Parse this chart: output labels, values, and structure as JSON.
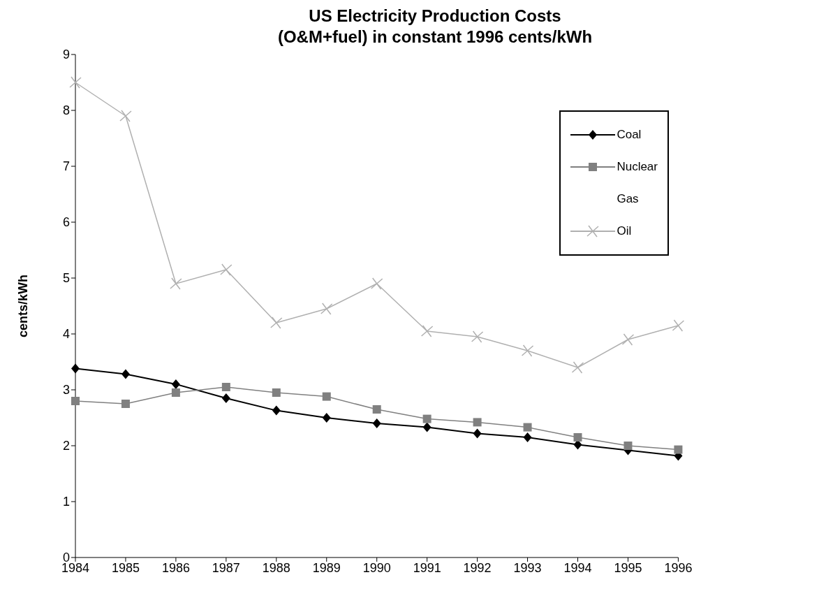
{
  "chart_data": {
    "type": "line",
    "title": "US Electricity Production Costs",
    "subtitle": "(O&M+fuel) in constant 1996 cents/kWh",
    "ylabel": "cents/kWh",
    "categories": [
      "1984",
      "1985",
      "1986",
      "1987",
      "1988",
      "1989",
      "1990",
      "1991",
      "1992",
      "1993",
      "1994",
      "1995",
      "1996"
    ],
    "series": [
      {
        "name": "Coal",
        "color": "#000000",
        "marker": "diamond",
        "values": [
          3.38,
          3.28,
          3.1,
          2.85,
          2.63,
          2.5,
          2.4,
          2.33,
          2.22,
          2.15,
          2.02,
          1.92,
          1.82
        ]
      },
      {
        "name": "Nuclear",
        "color": "#808080",
        "marker": "square",
        "values": [
          2.8,
          2.75,
          2.95,
          3.05,
          2.95,
          2.88,
          2.65,
          2.48,
          2.42,
          2.33,
          2.15,
          2.0,
          1.93
        ]
      },
      {
        "name": "Gas",
        "values": [
          null,
          null,
          null,
          null,
          null,
          null,
          null,
          null,
          null,
          null,
          null,
          null,
          null
        ]
      },
      {
        "name": "Oil",
        "color": "#b0b0b0",
        "marker": "cross",
        "values": [
          8.5,
          7.9,
          4.9,
          5.15,
          4.2,
          4.45,
          4.9,
          4.05,
          3.95,
          3.7,
          3.4,
          3.9,
          4.15
        ]
      }
    ],
    "ylim": [
      0,
      9
    ],
    "yticks": [
      0,
      1,
      2,
      3,
      4,
      5,
      6,
      7,
      8,
      9
    ],
    "grid": false,
    "legend": "top right"
  }
}
